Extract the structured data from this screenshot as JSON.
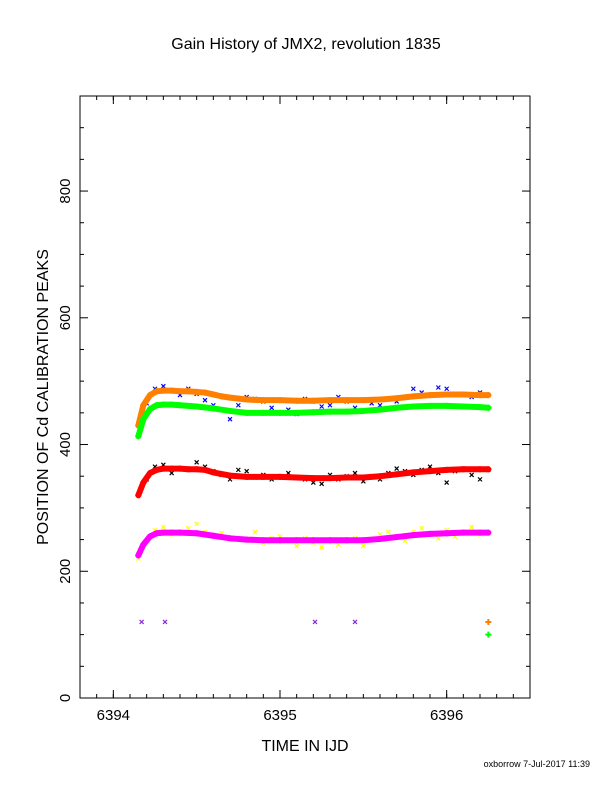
{
  "chart_data": {
    "type": "scatter",
    "title": "Gain History of JMX2, revolution 1835",
    "xlabel": "TIME IN IJD",
    "ylabel": "POSITION OF Cd CALIBRATION PEAKS",
    "xlim": [
      6393.8,
      6396.5
    ],
    "ylim": [
      0,
      950
    ],
    "xticks": [
      6394,
      6395,
      6396
    ],
    "yticks": [
      0,
      200,
      400,
      600,
      800
    ],
    "grid": false,
    "series": [
      {
        "color": "#0000ff",
        "marker": "x",
        "x": [
          6394.15,
          6394.2,
          6394.25,
          6394.3,
          6394.35,
          6394.4,
          6394.45,
          6394.5,
          6394.55,
          6394.6,
          6394.65,
          6394.7,
          6394.75,
          6394.8,
          6394.85,
          6394.9,
          6394.95,
          6395.0,
          6395.05,
          6395.1,
          6395.15,
          6395.2,
          6395.25,
          6395.3,
          6395.35,
          6395.4,
          6395.45,
          6395.5,
          6395.55,
          6395.6,
          6395.65,
          6395.7,
          6395.75,
          6395.8,
          6395.85,
          6395.9,
          6395.95,
          6396.0,
          6396.05,
          6396.1,
          6396.15,
          6396.2,
          6396.25
        ],
        "y": [
          430,
          465,
          488,
          492,
          485,
          478,
          488,
          480,
          470,
          462,
          455,
          440,
          462,
          475,
          472,
          468,
          458,
          470,
          455,
          448,
          472,
          468,
          460,
          462,
          475,
          468,
          458,
          470,
          465,
          462,
          472,
          468,
          475,
          488,
          482,
          478,
          490,
          488,
          480,
          478,
          475,
          482,
          478
        ]
      },
      {
        "color": "#ff7f00",
        "marker": "+",
        "x": [
          6394.15,
          6394.18,
          6394.22,
          6394.26,
          6394.3,
          6394.35,
          6394.4,
          6394.45,
          6394.5,
          6394.55,
          6394.6,
          6394.65,
          6394.7,
          6394.8,
          6394.9,
          6395.0,
          6395.1,
          6395.2,
          6395.3,
          6395.4,
          6395.5,
          6395.6,
          6395.7,
          6395.8,
          6395.9,
          6396.0,
          6396.1,
          6396.2,
          6396.25,
          6396.25
        ],
        "y": [
          430,
          462,
          478,
          484,
          485,
          485,
          484,
          484,
          483,
          482,
          479,
          476,
          474,
          471,
          470,
          470,
          469,
          469,
          470,
          470,
          470,
          471,
          473,
          476,
          478,
          479,
          479,
          478,
          478,
          120
        ]
      },
      {
        "color": "#00ff00",
        "marker": "+",
        "x": [
          6394.15,
          6394.18,
          6394.22,
          6394.26,
          6394.3,
          6394.35,
          6394.4,
          6394.5,
          6394.6,
          6394.7,
          6394.8,
          6394.9,
          6395.0,
          6395.1,
          6395.2,
          6395.3,
          6395.4,
          6395.5,
          6395.6,
          6395.7,
          6395.8,
          6395.9,
          6396.0,
          6396.1,
          6396.2,
          6396.25,
          6396.25
        ],
        "y": [
          413,
          440,
          456,
          462,
          463,
          463,
          462,
          460,
          457,
          453,
          450,
          450,
          450,
          450,
          451,
          452,
          452,
          453,
          455,
          458,
          460,
          461,
          461,
          460,
          459,
          458,
          100
        ]
      },
      {
        "color": "#000000",
        "marker": "x",
        "x": [
          6394.15,
          6394.2,
          6394.25,
          6394.3,
          6394.35,
          6394.4,
          6394.45,
          6394.5,
          6394.55,
          6394.6,
          6394.65,
          6394.7,
          6394.75,
          6394.8,
          6394.85,
          6394.9,
          6394.95,
          6395.0,
          6395.05,
          6395.1,
          6395.15,
          6395.2,
          6395.25,
          6395.3,
          6395.35,
          6395.4,
          6395.45,
          6395.5,
          6395.55,
          6395.6,
          6395.65,
          6395.7,
          6395.75,
          6395.8,
          6395.85,
          6395.9,
          6395.95,
          6396.0,
          6396.05,
          6396.1,
          6396.15,
          6396.2,
          6396.25
        ],
        "y": [
          320,
          345,
          365,
          368,
          355,
          362,
          360,
          372,
          365,
          358,
          352,
          345,
          360,
          358,
          348,
          352,
          345,
          350,
          355,
          348,
          345,
          340,
          338,
          352,
          345,
          350,
          355,
          342,
          350,
          345,
          355,
          362,
          358,
          352,
          360,
          365,
          355,
          340,
          358,
          362,
          352,
          345,
          360
        ]
      },
      {
        "color": "#ff0000",
        "marker": "+",
        "x": [
          6394.15,
          6394.18,
          6394.22,
          6394.26,
          6394.3,
          6394.35,
          6394.4,
          6394.45,
          6394.5,
          6394.55,
          6394.6,
          6394.7,
          6394.8,
          6394.9,
          6395.0,
          6395.1,
          6395.2,
          6395.3,
          6395.4,
          6395.5,
          6395.6,
          6395.7,
          6395.8,
          6395.9,
          6396.0,
          6396.1,
          6396.2,
          6396.25
        ],
        "y": [
          320,
          340,
          355,
          360,
          362,
          362,
          362,
          361,
          361,
          360,
          356,
          351,
          349,
          349,
          349,
          348,
          347,
          347,
          348,
          348,
          350,
          353,
          356,
          358,
          360,
          361,
          361,
          361
        ]
      },
      {
        "color": "#ffff00",
        "marker": "x",
        "x": [
          6394.15,
          6394.2,
          6394.25,
          6394.3,
          6394.35,
          6394.4,
          6394.45,
          6394.5,
          6394.55,
          6394.6,
          6394.65,
          6394.7,
          6394.75,
          6394.8,
          6394.85,
          6394.9,
          6394.95,
          6395.0,
          6395.05,
          6395.1,
          6395.15,
          6395.2,
          6395.25,
          6395.3,
          6395.35,
          6395.4,
          6395.45,
          6395.5,
          6395.55,
          6395.6,
          6395.65,
          6395.7,
          6395.75,
          6395.8,
          6395.85,
          6395.9,
          6395.95,
          6396.0,
          6396.05,
          6396.1,
          6396.15,
          6396.2,
          6396.25
        ],
        "y": [
          220,
          248,
          265,
          270,
          258,
          262,
          268,
          275,
          262,
          255,
          260,
          250,
          252,
          248,
          262,
          245,
          252,
          255,
          248,
          240,
          252,
          245,
          238,
          250,
          242,
          248,
          252,
          240,
          250,
          258,
          262,
          255,
          248,
          262,
          268,
          258,
          252,
          265,
          255,
          262,
          270,
          258,
          260
        ]
      },
      {
        "color": "#ff00ff",
        "marker": "+",
        "x": [
          6394.15,
          6394.18,
          6394.22,
          6394.26,
          6394.3,
          6394.35,
          6394.4,
          6394.5,
          6394.6,
          6394.7,
          6394.8,
          6394.9,
          6395.0,
          6395.1,
          6395.2,
          6395.3,
          6395.4,
          6395.5,
          6395.6,
          6395.7,
          6395.8,
          6395.9,
          6396.0,
          6396.1,
          6396.2,
          6396.25
        ],
        "y": [
          225,
          242,
          255,
          260,
          261,
          261,
          261,
          260,
          256,
          252,
          250,
          249,
          249,
          249,
          249,
          249,
          249,
          249,
          251,
          254,
          257,
          259,
          260,
          261,
          261,
          261
        ]
      },
      {
        "color": "#8a2be2",
        "marker": "x",
        "x": [
          6394.17,
          6394.31,
          6395.21,
          6395.45
        ],
        "y": [
          120,
          120,
          120,
          120
        ]
      }
    ]
  },
  "footer": {
    "text": "oxborrow  7-Jul-2017 11:39"
  }
}
